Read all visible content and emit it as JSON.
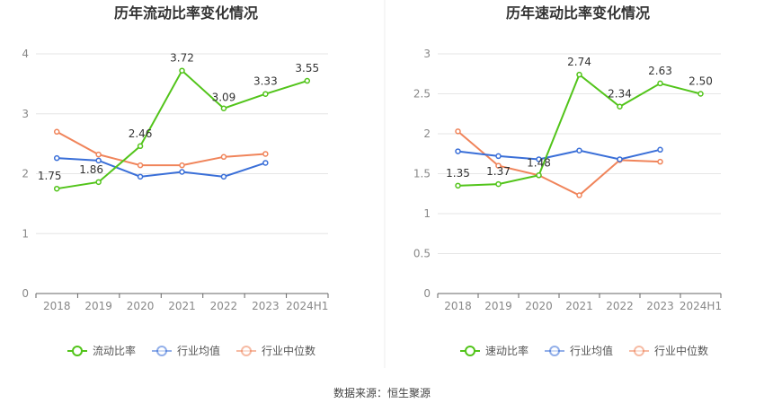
{
  "chart_data": [
    {
      "type": "line",
      "title": "历年流动比率变化情况",
      "categories": [
        "2018",
        "2019",
        "2020",
        "2021",
        "2022",
        "2023",
        "2024H1"
      ],
      "yticks": [
        "0",
        "1",
        "2",
        "3",
        "4"
      ],
      "ylim": [
        0,
        4
      ],
      "grid": true,
      "legend_position": "bottom",
      "series": [
        {
          "name": "流动比率",
          "color": "#52c41a",
          "values": [
            1.75,
            1.86,
            2.46,
            3.72,
            3.09,
            3.33,
            3.55
          ],
          "labels": [
            "1.75",
            "1.86",
            "2.46",
            "3.72",
            "3.09",
            "3.33",
            "3.55"
          ]
        },
        {
          "name": "行业均值",
          "color": "#3a6fd8",
          "values": [
            2.26,
            2.22,
            1.95,
            2.03,
            1.95,
            2.18,
            null
          ]
        },
        {
          "name": "行业中位数",
          "color": "#f0845a",
          "values": [
            2.7,
            2.32,
            2.14,
            2.14,
            2.28,
            2.33,
            null
          ]
        }
      ]
    },
    {
      "type": "line",
      "title": "历年速动比率变化情况",
      "categories": [
        "2018",
        "2019",
        "2020",
        "2021",
        "2022",
        "2023",
        "2024H1"
      ],
      "yticks": [
        "0",
        "0.5",
        "1",
        "1.5",
        "2",
        "2.5",
        "3"
      ],
      "ylim": [
        0,
        3
      ],
      "grid": true,
      "legend_position": "bottom",
      "series": [
        {
          "name": "速动比率",
          "color": "#52c41a",
          "values": [
            1.35,
            1.37,
            1.48,
            2.74,
            2.34,
            2.63,
            2.5
          ],
          "labels": [
            "1.35",
            "1.37",
            "1.48",
            "2.74",
            "2.34",
            "2.63",
            "2.50"
          ]
        },
        {
          "name": "行业均值",
          "color": "#3a6fd8",
          "values": [
            1.78,
            1.72,
            1.68,
            1.79,
            1.68,
            1.8,
            null
          ]
        },
        {
          "name": "行业中位数",
          "color": "#f0845a",
          "values": [
            2.03,
            1.6,
            1.48,
            1.23,
            1.67,
            1.65,
            null
          ]
        }
      ]
    }
  ],
  "source": "数据来源：恒生聚源"
}
